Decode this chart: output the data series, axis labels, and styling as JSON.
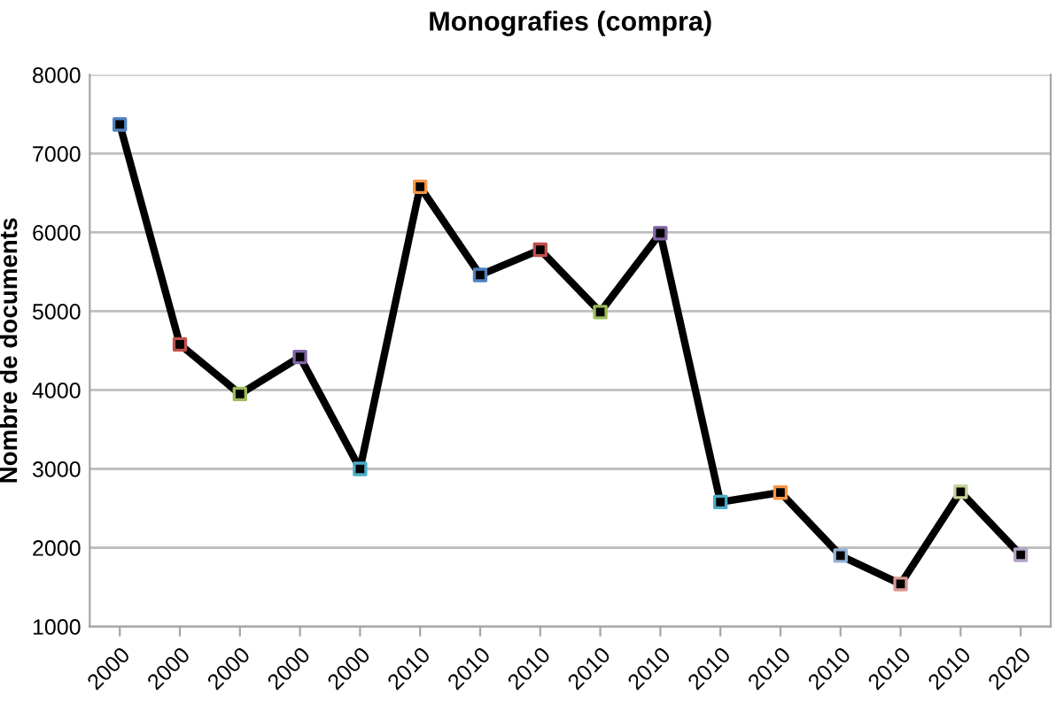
{
  "chart_data": {
    "type": "line",
    "title": "Monografies (compra)",
    "ylabel": "Nombre de documents",
    "categories": [
      "2000",
      "2000",
      "2000",
      "2000",
      "2000",
      "2010",
      "2010",
      "2010",
      "2010",
      "2010",
      "2010",
      "2010",
      "2010",
      "2010",
      "2010",
      "2020"
    ],
    "series": [
      {
        "color": "#000000",
        "values": [
          7370,
          4580,
          3950,
          4420,
          3000,
          6580,
          5460,
          5780,
          4990,
          5990,
          2580,
          2700,
          1900,
          1540,
          2710,
          1910
        ],
        "colors": [
          "#4f81bd",
          "#c0504d",
          "#9bbb59",
          "#8064a2",
          "#4bacc6",
          "#f79646",
          "#4f81bd",
          "#c0504d",
          "#9bbb59",
          "#8064a2",
          "#4bacc6",
          "#f79646",
          "#95b3d7",
          "#d99694",
          "#c3d69b",
          "#b3a2c7"
        ]
      }
    ],
    "ylim": [
      1000,
      8000
    ],
    "yticks": [
      1000,
      2000,
      3000,
      4000,
      5000,
      6000,
      7000,
      8000
    ],
    "grid": "y",
    "marker": "square",
    "line_style": "solid",
    "legend": false
  }
}
